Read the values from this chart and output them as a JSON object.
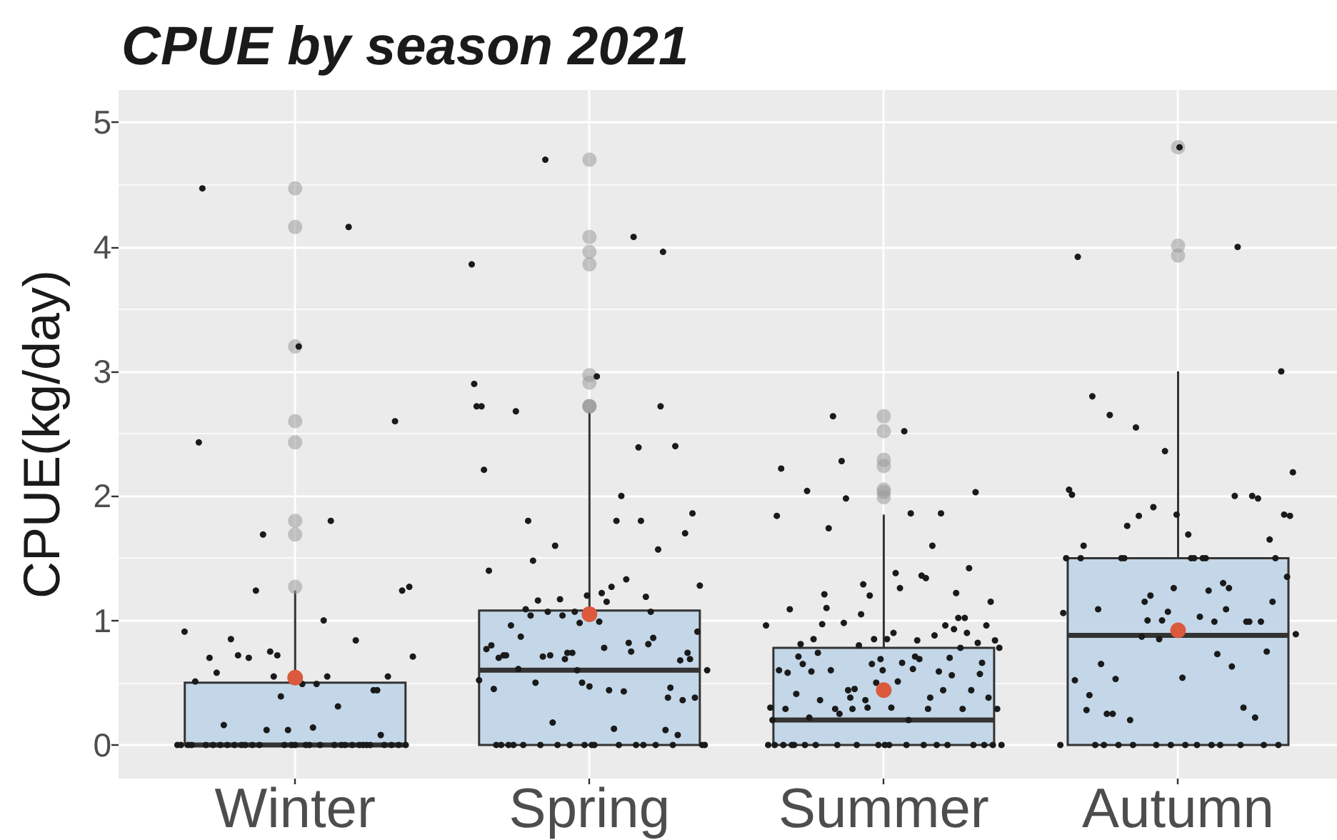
{
  "chart_data": {
    "type": "box",
    "title": "CPUE by season 2021",
    "ylabel": "CPUE(kg/day)",
    "categories": [
      "Winter",
      "Spring",
      "Summer",
      "Autumn"
    ],
    "ylim": [
      -0.27,
      5.26
    ],
    "yticks": [
      0,
      {
        "value": 0.5,
        "label": null
      },
      1,
      {
        "value": 1.5,
        "label": null
      },
      2,
      {
        "value": 2.5,
        "label": null
      },
      3,
      {
        "value": 3.5,
        "label": null
      },
      4,
      {
        "value": 4.5,
        "label": null
      },
      5
    ],
    "grid": true,
    "marker": "circle",
    "series": [
      {
        "type": "box",
        "color": "#c4d7e8",
        "boxes": [
          {
            "low": 0,
            "q1": 0,
            "median": 0,
            "q3": 0.5,
            "high": 1.24,
            "outliers": [
              1.27,
              1.69,
              1.8,
              2.43,
              2.6,
              3.2,
              4.16,
              4.47
            ]
          },
          {
            "low": 0,
            "q1": 0,
            "median": 0.6,
            "q3": 1.08,
            "high": 2.68,
            "outliers": [
              2.72,
              2.72,
              2.72,
              2.91,
              2.97,
              3.86,
              3.96,
              4.08,
              4.7
            ]
          },
          {
            "low": 0,
            "q1": 0,
            "median": 0.2,
            "q3": 0.78,
            "high": 1.85,
            "outliers": [
              1.99,
              2.03,
              2.05,
              2.24,
              2.29,
              2.52,
              2.64
            ]
          },
          {
            "low": 0,
            "q1": 0,
            "median": 0.88,
            "q3": 1.5,
            "high": 3.0,
            "outliers": [
              3.93,
              4.01,
              4.8
            ]
          }
        ]
      },
      {
        "type": "scatter",
        "color": "#1a1a1a",
        "x": [
          "Winter",
          "Winter",
          "Winter",
          "Winter",
          "Winter",
          "Winter",
          "Winter",
          "Winter",
          "Winter",
          "Winter",
          "Winter",
          "Winter",
          "Winter",
          "Winter",
          "Winter",
          "Winter",
          "Winter",
          "Winter",
          "Winter",
          "Winter",
          "Winter",
          "Winter",
          "Winter",
          "Winter",
          "Winter",
          "Winter",
          "Winter",
          "Winter",
          "Winter",
          "Winter",
          "Winter",
          "Winter",
          "Winter",
          "Winter",
          "Winter",
          "Winter",
          "Winter",
          "Winter",
          "Winter",
          "Winter",
          "Winter",
          "Winter",
          "Winter",
          "Winter",
          "Winter",
          "Winter",
          "Winter",
          "Winter",
          "Winter",
          "Winter",
          "Winter",
          "Winter",
          "Winter",
          "Winter",
          "Winter",
          "Winter",
          "Winter",
          "Winter",
          "Winter",
          "Winter",
          "Winter",
          "Winter",
          "Winter",
          "Winter",
          "Winter",
          "Winter",
          "Winter"
        ],
        "values": [
          0,
          0,
          0.91,
          0,
          0,
          0.51,
          2.43,
          4.47,
          0,
          0.7,
          0,
          0.58,
          0,
          0.16,
          0,
          0.85,
          0,
          0.72,
          0,
          0,
          0.7,
          0,
          1.24,
          0,
          1.69,
          0.12,
          0.75,
          0.55,
          0.72,
          0.39,
          0,
          0.12,
          0,
          0,
          3.2,
          0.49,
          0,
          0,
          0.14,
          0.49,
          0,
          1,
          0.55,
          1.8,
          0,
          0.31,
          0,
          0,
          4.16,
          0,
          0.84,
          0,
          0,
          0,
          0,
          0.44,
          0.44,
          0.08,
          0,
          0.55,
          0,
          2.6,
          0,
          1.24,
          0,
          1.27,
          0.71
        ]
      },
      {
        "type": "scatter",
        "color": "#1a1a1a",
        "x": [
          "Spring",
          "Spring",
          "Spring",
          "Spring",
          "Spring",
          "Spring",
          "Spring",
          "Spring",
          "Spring",
          "Spring",
          "Spring",
          "Spring",
          "Spring",
          "Spring",
          "Spring",
          "Spring",
          "Spring",
          "Spring",
          "Spring",
          "Spring",
          "Spring",
          "Spring",
          "Spring",
          "Spring",
          "Spring",
          "Spring",
          "Spring",
          "Spring",
          "Spring",
          "Spring",
          "Spring",
          "Spring",
          "Spring",
          "Spring",
          "Spring",
          "Spring",
          "Spring",
          "Spring",
          "Spring",
          "Spring",
          "Spring",
          "Spring",
          "Spring",
          "Spring",
          "Spring",
          "Spring",
          "Spring",
          "Spring",
          "Spring",
          "Spring",
          "Spring",
          "Spring",
          "Spring",
          "Spring",
          "Spring",
          "Spring",
          "Spring",
          "Spring",
          "Spring",
          "Spring",
          "Spring",
          "Spring",
          "Spring",
          "Spring",
          "Spring",
          "Spring",
          "Spring",
          "Spring",
          "Spring",
          "Spring",
          "Spring",
          "Spring",
          "Spring",
          "Spring",
          "Spring",
          "Spring",
          "Spring",
          "Spring",
          "Spring",
          "Spring",
          "Spring",
          "Spring",
          "Spring",
          "Spring",
          "Spring",
          "Spring",
          "Spring",
          "Spring",
          "Spring",
          "Spring",
          "Spring",
          "Spring",
          "Spring",
          "Spring",
          "Spring",
          "Spring",
          "Spring"
        ],
        "values": [
          3.86,
          2.9,
          2.72,
          0.52,
          2.72,
          2.21,
          0.77,
          1.4,
          0.8,
          0.45,
          0,
          0.7,
          0,
          0.72,
          0.72,
          0,
          0.96,
          0,
          2.68,
          0.61,
          0.87,
          0,
          1.09,
          1.8,
          1.04,
          1.48,
          0.5,
          1.16,
          0,
          0.71,
          4.7,
          1.07,
          0.72,
          0.18,
          1.6,
          0,
          1.17,
          1.04,
          0.69,
          0.74,
          0,
          0.74,
          1.07,
          0.6,
          0.98,
          0.5,
          0,
          1.2,
          0.47,
          0,
          0,
          2.96,
          0.99,
          1.22,
          0.78,
          1.15,
          0.44,
          1.27,
          0.13,
          1.8,
          0,
          2,
          0.43,
          1.33,
          0.82,
          0.75,
          4.08,
          0,
          2.39,
          1.8,
          0,
          1.19,
          0.81,
          1.07,
          0.86,
          0,
          1.57,
          2.72,
          3.96,
          0.12,
          0.38,
          0.46,
          0,
          2.4,
          0.08,
          0.68,
          0.36,
          1.7,
          0.74,
          0.69,
          1.86,
          0.38,
          0.91,
          1.28,
          0,
          0,
          0.6
        ]
      },
      {
        "type": "scatter",
        "color": "#1a1a1a",
        "x": [
          "Summer",
          "Summer",
          "Summer",
          "Summer",
          "Summer",
          "Summer",
          "Summer",
          "Summer",
          "Summer",
          "Summer",
          "Summer",
          "Summer",
          "Summer",
          "Summer",
          "Summer",
          "Summer",
          "Summer",
          "Summer",
          "Summer",
          "Summer",
          "Summer",
          "Summer",
          "Summer",
          "Summer",
          "Summer",
          "Summer",
          "Summer",
          "Summer",
          "Summer",
          "Summer",
          "Summer",
          "Summer",
          "Summer",
          "Summer",
          "Summer",
          "Summer",
          "Summer",
          "Summer",
          "Summer",
          "Summer",
          "Summer",
          "Summer",
          "Summer",
          "Summer",
          "Summer",
          "Summer",
          "Summer",
          "Summer",
          "Summer",
          "Summer",
          "Summer",
          "Summer",
          "Summer",
          "Summer",
          "Summer",
          "Summer",
          "Summer",
          "Summer",
          "Summer",
          "Summer",
          "Summer",
          "Summer",
          "Summer",
          "Summer",
          "Summer",
          "Summer",
          "Summer",
          "Summer",
          "Summer",
          "Summer",
          "Summer",
          "Summer",
          "Summer",
          "Summer",
          "Summer",
          "Summer",
          "Summer",
          "Summer",
          "Summer",
          "Summer",
          "Summer",
          "Summer",
          "Summer",
          "Summer",
          "Summer",
          "Summer",
          "Summer",
          "Summer",
          "Summer",
          "Summer",
          "Summer",
          "Summer",
          "Summer",
          "Summer",
          "Summer",
          "Summer",
          "Summer",
          "Summer",
          "Summer",
          "Summer",
          "Summer",
          "Summer",
          "Summer",
          "Summer",
          "Summer",
          "Summer",
          "Summer",
          "Summer",
          "Summer",
          "Summer"
        ],
        "values": [
          0.96,
          0,
          0.3,
          0.2,
          0,
          1.84,
          0.6,
          2.22,
          0,
          0.29,
          0.58,
          1.09,
          0,
          0,
          0.41,
          0.71,
          0.81,
          0.65,
          0,
          2.04,
          0.22,
          0.59,
          0.85,
          0,
          0.74,
          0.36,
          0.97,
          1.21,
          1.1,
          1.74,
          0.6,
          2.64,
          0.29,
          0,
          0.25,
          2.28,
          0.98,
          1.98,
          0.44,
          0.38,
          0.29,
          0.45,
          0,
          0.8,
          1.05,
          1.29,
          0.36,
          0.3,
          1.2,
          0.65,
          0.85,
          0.5,
          0,
          0.69,
          0.6,
          0,
          0.85,
          0,
          0.3,
          0.9,
          1.38,
          0.51,
          1.26,
          0.66,
          2.52,
          0,
          0.2,
          1.86,
          0.61,
          0.71,
          0.84,
          0.69,
          1.36,
          0,
          1.34,
          0.29,
          0.38,
          1.6,
          0.88,
          0,
          0.59,
          1.86,
          0.44,
          0.96,
          0,
          0.7,
          0.56,
          0.93,
          1.22,
          1.02,
          0.78,
          0.29,
          1.02,
          0.9,
          1.42,
          0.44,
          0,
          2.03,
          0.82,
          0.57,
          0.66,
          0,
          0.96,
          0.38,
          1.15,
          0,
          0.84,
          0.29,
          0.78,
          0
        ]
      },
      {
        "type": "scatter",
        "color": "#1a1a1a",
        "x": [
          "Autumn",
          "Autumn",
          "Autumn",
          "Autumn",
          "Autumn",
          "Autumn",
          "Autumn",
          "Autumn",
          "Autumn",
          "Autumn",
          "Autumn",
          "Autumn",
          "Autumn",
          "Autumn",
          "Autumn",
          "Autumn",
          "Autumn",
          "Autumn",
          "Autumn",
          "Autumn",
          "Autumn",
          "Autumn",
          "Autumn",
          "Autumn",
          "Autumn",
          "Autumn",
          "Autumn",
          "Autumn",
          "Autumn",
          "Autumn",
          "Autumn",
          "Autumn",
          "Autumn",
          "Autumn",
          "Autumn",
          "Autumn",
          "Autumn",
          "Autumn",
          "Autumn",
          "Autumn",
          "Autumn",
          "Autumn",
          "Autumn",
          "Autumn",
          "Autumn",
          "Autumn",
          "Autumn",
          "Autumn",
          "Autumn",
          "Autumn",
          "Autumn",
          "Autumn",
          "Autumn",
          "Autumn",
          "Autumn",
          "Autumn",
          "Autumn",
          "Autumn",
          "Autumn",
          "Autumn",
          "Autumn",
          "Autumn",
          "Autumn",
          "Autumn",
          "Autumn",
          "Autumn",
          "Autumn",
          "Autumn",
          "Autumn",
          "Autumn",
          "Autumn",
          "Autumn",
          "Autumn",
          "Autumn",
          "Autumn",
          "Autumn",
          "Autumn",
          "Autumn",
          "Autumn",
          "Autumn",
          "Autumn",
          "Autumn"
        ],
        "values": [
          0,
          1.06,
          1.5,
          2.05,
          2.01,
          0.52,
          3.92,
          1.5,
          1.6,
          0.28,
          0.4,
          2.8,
          0,
          1.09,
          0.65,
          0,
          0.25,
          2.65,
          0.25,
          0.53,
          0,
          1.5,
          1.5,
          1.76,
          0.2,
          0,
          2.55,
          1.84,
          0.87,
          1.15,
          1,
          1.2,
          1.91,
          0,
          0.85,
          1,
          2.36,
          1.07,
          0,
          1.26,
          1.85,
          4.8,
          0.54,
          0,
          1.69,
          1.5,
          1.5,
          0,
          1.03,
          1.5,
          1.5,
          1.24,
          0,
          0.99,
          0.73,
          0,
          1.3,
          1.09,
          1.26,
          0.63,
          2,
          4,
          0,
          0.3,
          0.99,
          0.99,
          2,
          0.22,
          1.98,
          0.99,
          0,
          0.75,
          1.65,
          1.15,
          1.5,
          0,
          3,
          1.85,
          1.35,
          1.84,
          2.19,
          0.89
        ]
      },
      {
        "type": "scatter",
        "color": "#db5a3e",
        "x": [
          "Winter",
          "Spring",
          "Summer",
          "Autumn"
        ],
        "values": [
          0.54,
          1.05,
          0.44,
          0.92
        ]
      }
    ]
  }
}
